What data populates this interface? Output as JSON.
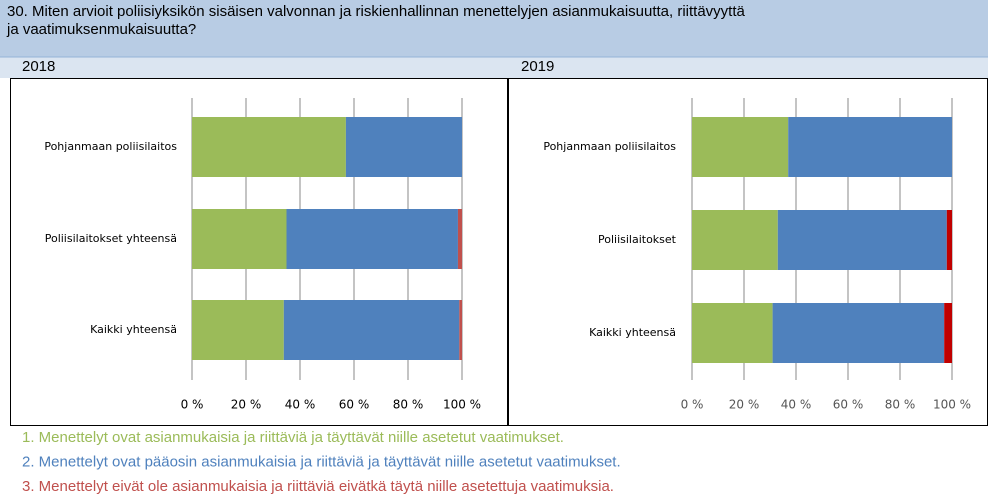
{
  "question": "30. Miten arvioit poliisiyksikön sisäisen valvonnan ja riskienhallinnan menettelyjen asianmukaisuutta, riittävyyttä ja vaatimuksenmukaisuutta?",
  "legend": [
    {
      "text": "1. Menettelyt ovat asianmukaisia ja riittäviä ja täyttävät niille asetetut vaatimukset.",
      "color": "#9bbb59"
    },
    {
      "text": "2. Menettelyt ovat pääosin asianmukaisia ja riittäviä ja täyttävät  niille asetetut vaatimukset.",
      "color": "#4f81bd"
    },
    {
      "text": "3. Menettelyt eivät ole asianmukaisia ja riittäviä eivätkä täytä niille asetettuja vaatimuksia.",
      "color": "#c0504d"
    }
  ],
  "chart_data": [
    {
      "type": "bar",
      "orientation": "horizontal",
      "stacked": true,
      "title": "2018",
      "categories": [
        "Pohjanmaan poliisilaitos",
        "Poliisilaitokset yhteensä",
        "Kaikki yhteensä"
      ],
      "series": [
        {
          "color": "#9bbb59",
          "values": [
            57,
            35,
            34
          ]
        },
        {
          "color": "#4f81bd",
          "values": [
            43,
            63.5,
            65
          ]
        },
        {
          "color": "#c0504d",
          "values": [
            0,
            1.5,
            1
          ]
        }
      ],
      "xlim": [
        0,
        100
      ],
      "xticks": [
        {
          "value": 0,
          "label": "0 %"
        },
        {
          "value": 20,
          "label": "20 %"
        },
        {
          "value": 40,
          "label": "40 %"
        },
        {
          "value": 60,
          "label": "60 %"
        },
        {
          "value": 80,
          "label": "80 %"
        },
        {
          "value": 100,
          "label": "100 %"
        }
      ],
      "grid": true
    },
    {
      "type": "bar",
      "orientation": "horizontal",
      "stacked": true,
      "title": "2019",
      "categories": [
        "Pohjanmaan poliisilaitos",
        "Poliisilaitokset",
        "Kaikki yhteensä"
      ],
      "series": [
        {
          "color": "#9bbb59",
          "values": [
            37,
            33,
            31
          ]
        },
        {
          "color": "#4f81bd",
          "values": [
            63,
            65,
            66
          ]
        },
        {
          "color": "#c00000",
          "values": [
            0,
            2,
            3
          ]
        }
      ],
      "xlim": [
        0,
        100
      ],
      "xticks": [
        {
          "value": 0,
          "label": "0 %"
        },
        {
          "value": 20,
          "label": "20 %"
        },
        {
          "value": 40,
          "label": "40 %"
        },
        {
          "value": 60,
          "label": "60 %"
        },
        {
          "value": 80,
          "label": "80 %"
        },
        {
          "value": 100,
          "label": "100 %"
        }
      ],
      "grid": true
    }
  ]
}
